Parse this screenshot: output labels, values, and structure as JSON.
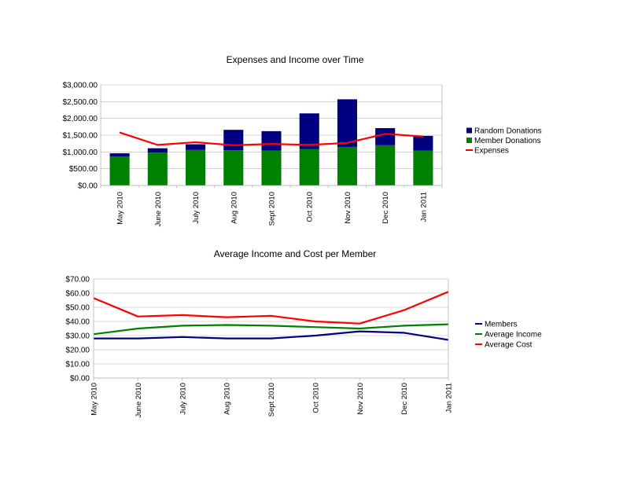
{
  "chart_data": [
    {
      "type": "bar",
      "title": "Expenses and Income over Time",
      "xlabel": "",
      "ylabel": "",
      "categories": [
        "May 2010",
        "June 2010",
        "July 2010",
        "Aug 2010",
        "Sept 2010",
        "Oct 2010",
        "Nov 2010",
        "Dec 2010",
        "Jan 2011"
      ],
      "ylim": [
        0,
        3000
      ],
      "yticks": [
        0,
        500,
        1000,
        1500,
        2000,
        2500,
        3000
      ],
      "ytick_labels": [
        "$0.00",
        "$500.00",
        "$1,000.00",
        "$1,500.00",
        "$2,000.00",
        "$2,500.00",
        "$3,000.00"
      ],
      "stacked": true,
      "grid": true,
      "legend_position": "right",
      "series": [
        {
          "name": "Member Donations",
          "kind": "bar",
          "color": "#008000",
          "values": [
            860,
            980,
            1060,
            1050,
            1040,
            1090,
            1150,
            1200,
            1040
          ]
        },
        {
          "name": "Random Donations",
          "kind": "bar",
          "color": "#000080",
          "values": [
            100,
            130,
            170,
            610,
            580,
            1060,
            1420,
            510,
            440
          ]
        },
        {
          "name": "Expenses",
          "kind": "line",
          "color": "#ff0000",
          "values": [
            1580,
            1210,
            1290,
            1200,
            1240,
            1210,
            1270,
            1540,
            1460
          ]
        }
      ],
      "legend_order": [
        "Random Donations",
        "Member Donations",
        "Expenses"
      ]
    },
    {
      "type": "line",
      "title": "Average Income and Cost per Member",
      "xlabel": "",
      "ylabel": "",
      "categories": [
        "May 2010",
        "June 2010",
        "July 2010",
        "Aug 2010",
        "Sept 2010",
        "Oct 2010",
        "Nov 2010",
        "Dec 2010",
        "Jan 2011"
      ],
      "ylim": [
        0,
        70
      ],
      "yticks": [
        0,
        10,
        20,
        30,
        40,
        50,
        60,
        70
      ],
      "ytick_labels": [
        "$0.00",
        "$10.00",
        "$20.00",
        "$30.00",
        "$40.00",
        "$50.00",
        "$60.00",
        "$70.00"
      ],
      "grid": true,
      "legend_position": "right",
      "series": [
        {
          "name": "Members",
          "color": "#000080",
          "values": [
            28,
            28,
            29,
            28,
            28,
            30,
            33,
            32,
            27
          ]
        },
        {
          "name": "Average Income",
          "color": "#008000",
          "values": [
            31,
            35,
            37,
            37.5,
            37,
            36,
            35,
            37,
            38
          ]
        },
        {
          "name": "Average Cost",
          "color": "#ff0000",
          "values": [
            56.5,
            43.5,
            44.5,
            43,
            44,
            40,
            38.5,
            48,
            61
          ]
        }
      ],
      "legend_order": [
        "Members",
        "Average Income",
        "Average Cost"
      ]
    }
  ]
}
